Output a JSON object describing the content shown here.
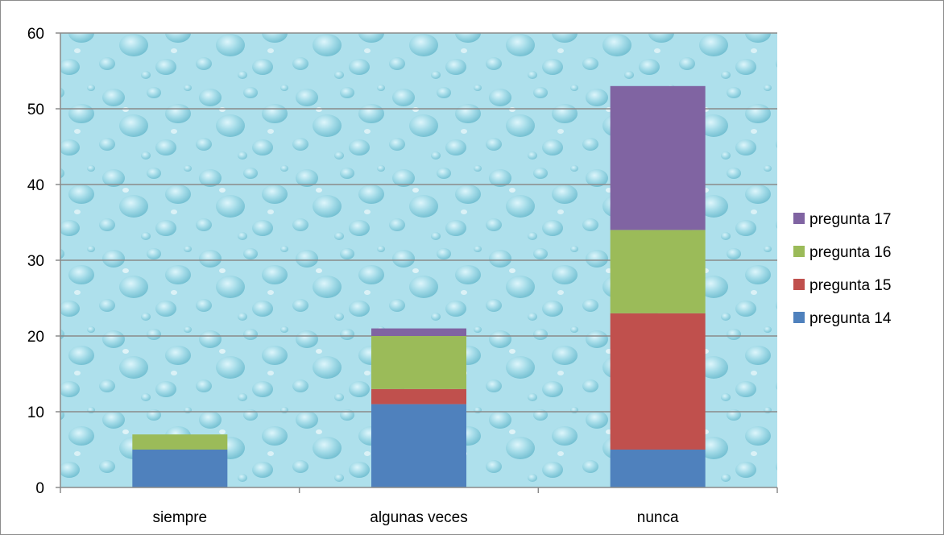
{
  "chart_data": {
    "type": "bar",
    "stacked": true,
    "categories": [
      "siempre",
      "algunas veces",
      "nunca"
    ],
    "series": [
      {
        "name": "pregunta 14",
        "color": "#4f81bd",
        "values": [
          5,
          11,
          5
        ]
      },
      {
        "name": "pregunta 15",
        "color": "#c0504d",
        "values": [
          0,
          2,
          18
        ]
      },
      {
        "name": "pregunta 16",
        "color": "#9bbb59",
        "values": [
          2,
          7,
          11
        ]
      },
      {
        "name": "pregunta 17",
        "color": "#8064a2",
        "values": [
          0,
          1,
          19
        ]
      }
    ],
    "ylim": [
      0,
      60
    ],
    "yticks": [
      0,
      10,
      20,
      30,
      40,
      50,
      60
    ],
    "ytick_labels": [
      "0",
      "10",
      "20",
      "30",
      "40",
      "50",
      "60"
    ],
    "grid": true,
    "legend_position": "right",
    "legend_order": "reversed",
    "plot_background": "water-droplet texture (light cyan)",
    "gridline_color": "#8a8a8a"
  }
}
